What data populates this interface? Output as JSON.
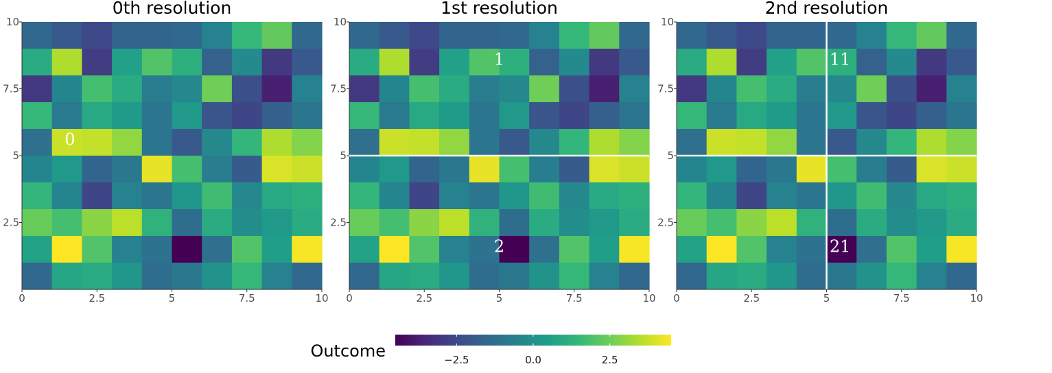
{
  "chart_data": {
    "type": "heatmap",
    "color_scale": "viridis",
    "value_range": [
      -4.5,
      4.5
    ],
    "x": [
      0.5,
      1.5,
      2.5,
      3.5,
      4.5,
      5.5,
      6.5,
      7.5,
      8.5,
      9.5
    ],
    "y": [
      9.5,
      8.5,
      7.5,
      6.5,
      5.5,
      4.5,
      3.5,
      2.5,
      1.5,
      0.5
    ],
    "xlim": [
      0,
      10
    ],
    "ylim": [
      0,
      10
    ],
    "x_ticks": [
      "0",
      "2.5",
      "5",
      "7.5",
      "10"
    ],
    "y_ticks": [
      "10",
      "7.5",
      "5",
      "2.5"
    ],
    "z": [
      [
        -1.5,
        -2.0,
        -2.5,
        -1.6,
        -1.6,
        -1.5,
        -0.5,
        1.5,
        2.3,
        -1.5
      ],
      [
        1.0,
        3.4,
        -2.9,
        0.6,
        2.0,
        1.2,
        -1.7,
        -0.2,
        -3.0,
        -2.0
      ],
      [
        -3.0,
        -0.4,
        1.8,
        1.0,
        -0.7,
        -0.3,
        2.5,
        -2.3,
        -3.7,
        -0.5
      ],
      [
        1.5,
        -0.8,
        0.9,
        0.4,
        -1.0,
        0.3,
        -2.1,
        -2.6,
        -1.8,
        -1.0
      ],
      [
        -1.2,
        3.8,
        3.7,
        3.0,
        -1.0,
        -2.0,
        -0.3,
        1.4,
        3.4,
        2.8
      ],
      [
        -0.4,
        0.3,
        -1.6,
        -0.9,
        4.2,
        1.8,
        -0.7,
        -1.9,
        4.0,
        3.8
      ],
      [
        1.4,
        -0.4,
        -2.6,
        -0.5,
        -1.0,
        0.2,
        1.7,
        -0.3,
        0.9,
        1.2
      ],
      [
        2.4,
        1.8,
        2.9,
        3.6,
        1.3,
        -1.3,
        1.0,
        -0.1,
        0.3,
        1.0
      ],
      [
        0.7,
        4.6,
        2.0,
        -0.5,
        -1.1,
        -4.5,
        -1.2,
        2.0,
        0.5,
        4.4
      ],
      [
        -1.5,
        0.8,
        1.0,
        0.2,
        -1.3,
        -0.9,
        0.1,
        1.5,
        -0.5,
        -1.5
      ]
    ],
    "panels": [
      {
        "title": "0th resolution",
        "splits": [],
        "labels": [
          {
            "text": "0",
            "x": 1.6,
            "y": 5.6
          }
        ]
      },
      {
        "title": "1st resolution",
        "splits": [
          {
            "axis": "y",
            "value": 5
          }
        ],
        "labels": [
          {
            "text": "1",
            "x": 5.0,
            "y": 8.6
          },
          {
            "text": "2",
            "x": 5.0,
            "y": 1.6
          }
        ]
      },
      {
        "title": "2nd resolution",
        "splits": [
          {
            "axis": "y",
            "value": 5
          },
          {
            "axis": "x",
            "value": 5
          }
        ],
        "labels": [
          {
            "text": "11",
            "x": 5.45,
            "y": 8.6
          },
          {
            "text": "21",
            "x": 5.45,
            "y": 1.6
          }
        ]
      }
    ],
    "colorbar": {
      "title": "Outcome",
      "ticks": [
        -2.5,
        0.0,
        2.5
      ],
      "tick_labels": [
        "−2.5",
        "0.0",
        "2.5"
      ]
    },
    "colors": {
      "viridis": [
        "#440154",
        "#482878",
        "#3e4989",
        "#31688e",
        "#26828e",
        "#1f9e89",
        "#35b779",
        "#6ece58",
        "#b5de2b",
        "#fde725"
      ],
      "split_line": "#ffffff",
      "axis_line": "#333333"
    }
  }
}
